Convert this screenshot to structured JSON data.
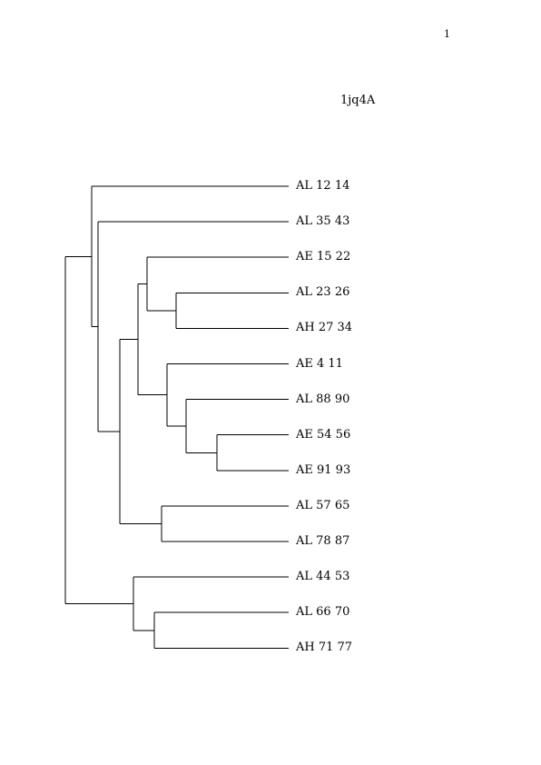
{
  "page_number": "1",
  "title": "1jq4A",
  "leaves": [
    "AL 12 14",
    "AL 35 43",
    "AE 15 22",
    "AL 23 26",
    "AH 27 34",
    "AE 4 11",
    "AL 88 90",
    "AE 54 56",
    "AE 91 93",
    "AL 57 65",
    "AL 78 87",
    "AL 44 53",
    "AL 66 70",
    "AH 71 77"
  ]
}
